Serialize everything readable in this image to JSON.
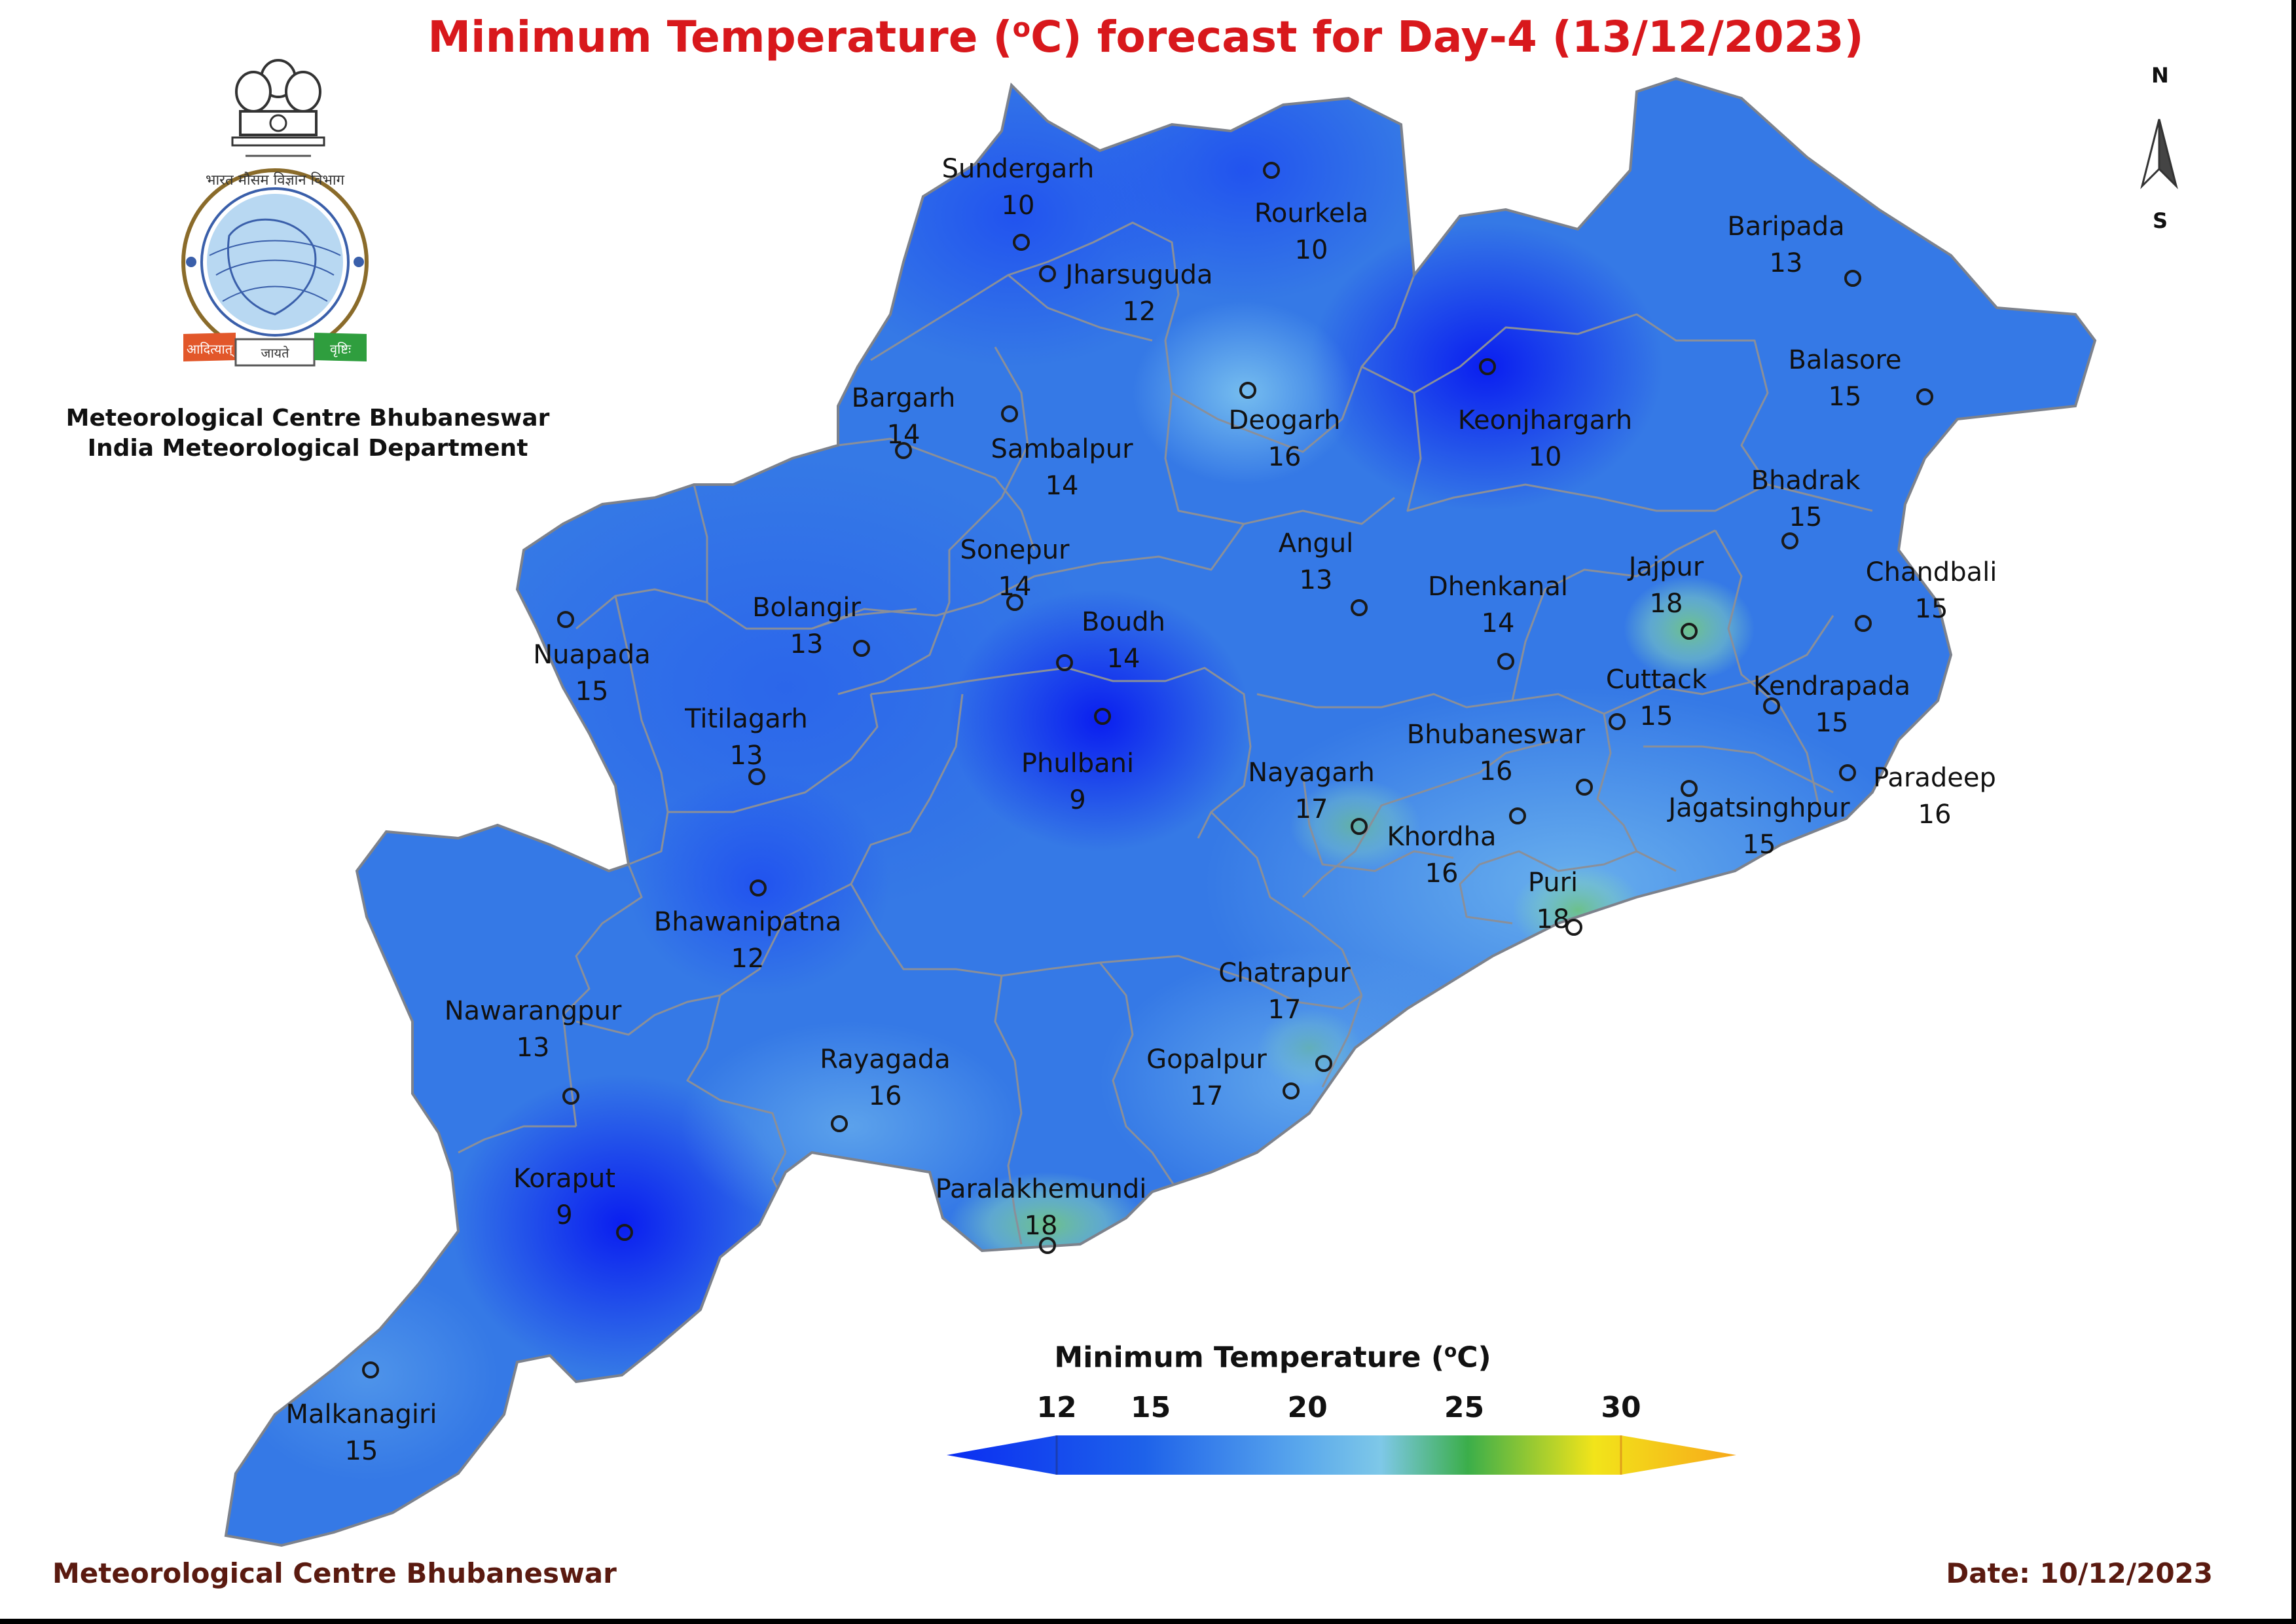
{
  "title": {
    "prefix": "Minimum Temperature (",
    "sup": "o",
    "suffix": "C) forecast for Day-4 (13/12/2023)"
  },
  "organization": {
    "line1": "Meteorological Centre Bhubaneswar",
    "line2": "India Meteorological Department",
    "emblem_icon": "ashoka-emblem-icon",
    "logo_icon": "imd-logo-icon",
    "logo_text": "भारत मौसम विज्ञान विभाग",
    "logo_ribbon": [
      "आदित्यात्",
      "जायते",
      "वृष्टिः"
    ]
  },
  "compass": {
    "north": "N",
    "south": "S",
    "icon": "north-arrow-icon"
  },
  "stations": [
    {
      "name": "Sundergarh",
      "value": "10"
    },
    {
      "name": "Rourkela",
      "value": "10"
    },
    {
      "name": "Jharsuguda",
      "value": "12"
    },
    {
      "name": "Baripada",
      "value": "13"
    },
    {
      "name": "Balasore",
      "value": "15"
    },
    {
      "name": "Bargarh",
      "value": "14"
    },
    {
      "name": "Sambalpur",
      "value": "14"
    },
    {
      "name": "Deogarh",
      "value": "16"
    },
    {
      "name": "Keonjhargarh",
      "value": "10"
    },
    {
      "name": "Bhadrak",
      "value": "15"
    },
    {
      "name": "Sonepur",
      "value": "14"
    },
    {
      "name": "Angul",
      "value": "13"
    },
    {
      "name": "Dhenkanal",
      "value": "14"
    },
    {
      "name": "Jajpur",
      "value": "18"
    },
    {
      "name": "Chandbali",
      "value": "15"
    },
    {
      "name": "Bolangir",
      "value": "13"
    },
    {
      "name": "Boudh",
      "value": "14"
    },
    {
      "name": "Nuapada",
      "value": "15"
    },
    {
      "name": "Cuttack",
      "value": "15"
    },
    {
      "name": "Kendrapada",
      "value": "15"
    },
    {
      "name": "Titilagarh",
      "value": "13"
    },
    {
      "name": "Phulbani",
      "value": "9"
    },
    {
      "name": "Bhubaneswar",
      "value": "16"
    },
    {
      "name": "Nayagarh",
      "value": "17"
    },
    {
      "name": "Paradeep",
      "value": "16"
    },
    {
      "name": "Jagatsinghpur",
      "value": "15"
    },
    {
      "name": "Khordha",
      "value": "16"
    },
    {
      "name": "Bhawanipatna",
      "value": "12"
    },
    {
      "name": "Puri",
      "value": "18"
    },
    {
      "name": "Chatrapur",
      "value": "17"
    },
    {
      "name": "Nawarangpur",
      "value": "13"
    },
    {
      "name": "Rayagada",
      "value": "16"
    },
    {
      "name": "Gopalpur",
      "value": "17"
    },
    {
      "name": "Koraput",
      "value": "9"
    },
    {
      "name": "Paralakhemundi",
      "value": "18"
    },
    {
      "name": "Malkanagiri",
      "value": "15"
    }
  ],
  "legend": {
    "title_prefix": "Minimum Temperature (",
    "title_sup": "o",
    "title_suffix": "C)",
    "ticks": [
      "12",
      "15",
      "20",
      "25",
      "30"
    ],
    "tick_values": [
      12,
      15,
      20,
      25,
      30
    ],
    "range": [
      10,
      32
    ],
    "colors": [
      "#0a2df2",
      "#1e62ea",
      "#3a8be6",
      "#66b8ee",
      "#3bae4a",
      "#f2e41a",
      "#f7a81a"
    ]
  },
  "footer": {
    "left": "Meteorological Centre Bhubaneswar",
    "right": "Date: 10/12/2023"
  }
}
